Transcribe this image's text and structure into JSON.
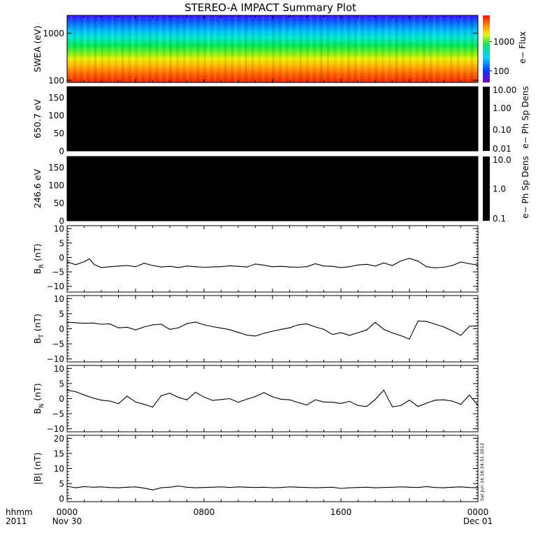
{
  "title": "STEREO-A IMPACT Summary Plot",
  "timestamp": "Sat Jun 16 16:24:51 2012",
  "footer": {
    "time_format_label": "hhmm",
    "year_label": "2011",
    "ticks": [
      {
        "hour": 0,
        "label": "0000",
        "date": "Nov 30"
      },
      {
        "hour": 8,
        "label": "0800",
        "date": ""
      },
      {
        "hour": 16,
        "label": "1600",
        "date": ""
      },
      {
        "hour": 24,
        "label": "0000",
        "date": "Dec 01"
      }
    ]
  },
  "chart_data": [
    {
      "type": "heatmap",
      "panel": "swea",
      "ylabel": "SWEA (eV)",
      "y_scale": "log",
      "ylim": [
        90,
        2400
      ],
      "yticks": [
        {
          "value": 100,
          "label": "100"
        },
        {
          "value": 1000,
          "label": "1000"
        }
      ],
      "colorbar_label": "e− Flux",
      "colorbar_ticks": [
        {
          "value": 100,
          "label": "100"
        },
        {
          "value": 1000,
          "label": "1000"
        }
      ],
      "colorbar_range": [
        40,
        8000
      ]
    },
    {
      "type": "heatmap",
      "panel": "pad650",
      "ylabel": "650.7 eV",
      "ylim": [
        0,
        180
      ],
      "yticks": [
        {
          "value": 0,
          "label": "0"
        },
        {
          "value": 50,
          "label": "50"
        },
        {
          "value": 100,
          "label": "100"
        },
        {
          "value": 150,
          "label": "150"
        }
      ],
      "fill_color": "#000000",
      "colorbar_label": "e− Ph Sp Dens",
      "colorbar_scale": "log",
      "colorbar_range": [
        0.01,
        10
      ],
      "colorbar_ticks": [
        {
          "value": 10,
          "label": "10.00"
        },
        {
          "value": 1,
          "label": "1.00"
        },
        {
          "value": 0.1,
          "label": "0.10"
        },
        {
          "value": 0.01,
          "label": "0.01"
        }
      ]
    },
    {
      "type": "heatmap",
      "panel": "pad246",
      "ylabel": "246.6 eV",
      "ylim": [
        0,
        180
      ],
      "yticks": [
        {
          "value": 0,
          "label": "0"
        },
        {
          "value": 50,
          "label": "50"
        },
        {
          "value": 100,
          "label": "100"
        },
        {
          "value": 150,
          "label": "150"
        }
      ],
      "fill_color": "#000000",
      "colorbar_label": "e− Ph Sp Dens",
      "colorbar_scale": "log",
      "colorbar_range": [
        0.1,
        10
      ],
      "colorbar_ticks": [
        {
          "value": 10,
          "label": "10.0"
        },
        {
          "value": 1,
          "label": "1.0"
        },
        {
          "value": 0.1,
          "label": "0.1"
        }
      ]
    },
    {
      "type": "line",
      "panel": "br",
      "ylabel_main": "B",
      "ylabel_sub": "R",
      "ylabel_unit": "(nT)",
      "ylim": [
        -12,
        11
      ],
      "yticks": [
        {
          "value": -10,
          "label": "−10"
        },
        {
          "value": -5,
          "label": "−5"
        },
        {
          "value": 0,
          "label": "0"
        },
        {
          "value": 5,
          "label": "5"
        },
        {
          "value": 10,
          "label": "10"
        }
      ],
      "x": [
        0,
        0.5,
        1,
        1.3,
        1.6,
        2,
        2.5,
        3,
        3.5,
        4,
        4.5,
        5,
        5.5,
        6,
        6.5,
        7,
        7.5,
        8,
        8.5,
        9,
        9.5,
        10,
        10.5,
        11,
        11.5,
        12,
        12.5,
        13,
        13.5,
        14,
        14.5,
        15,
        15.5,
        16,
        16.5,
        17,
        17.5,
        18,
        18.5,
        19,
        19.5,
        20,
        20.5,
        21,
        21.5,
        22,
        22.5,
        23,
        23.5,
        24
      ],
      "y": [
        -1.5,
        -2.5,
        -1.5,
        -0.5,
        -2.5,
        -3.5,
        -3.2,
        -3,
        -2.8,
        -3.2,
        -2,
        -2.8,
        -3.3,
        -3.1,
        -3.5,
        -3,
        -3.2,
        -3.4,
        -3.3,
        -3.2,
        -2.9,
        -3.1,
        -3.3,
        -2.3,
        -2.7,
        -3.2,
        -3.1,
        -3.3,
        -3.4,
        -3.2,
        -2.2,
        -3,
        -3.1,
        -3.5,
        -3.2,
        -2.6,
        -2.4,
        -3,
        -1.9,
        -2.8,
        -1.2,
        -0.3,
        -1.3,
        -3.2,
        -3.6,
        -3.4,
        -2.8,
        -1.6,
        -2.2,
        -2.6
      ]
    },
    {
      "type": "line",
      "panel": "bt",
      "ylabel_main": "B",
      "ylabel_sub": "T",
      "ylabel_unit": "(nT)",
      "ylim": [
        -11,
        11
      ],
      "yticks": [
        {
          "value": -10,
          "label": "−10"
        },
        {
          "value": -5,
          "label": "−5"
        },
        {
          "value": 0,
          "label": "0"
        },
        {
          "value": 5,
          "label": "5"
        },
        {
          "value": 10,
          "label": "10"
        }
      ],
      "x": [
        0,
        0.5,
        1,
        1.5,
        2,
        2.5,
        3,
        3.5,
        4,
        4.5,
        5,
        5.5,
        6,
        6.5,
        7,
        7.5,
        8,
        8.5,
        9,
        9.5,
        10,
        10.5,
        11,
        11.5,
        12,
        12.5,
        13,
        13.5,
        14,
        14.5,
        15,
        15.5,
        16,
        16.5,
        17,
        17.5,
        18,
        18.5,
        19,
        19.5,
        20,
        20.5,
        21,
        21.5,
        22,
        22.5,
        23,
        23.5,
        24
      ],
      "y": [
        2.2,
        2,
        1.8,
        1.9,
        1.5,
        1.6,
        0.3,
        0.5,
        -0.4,
        0.6,
        1.3,
        1.5,
        -0.2,
        0.3,
        1.7,
        2.2,
        1.3,
        0.7,
        0.2,
        -0.3,
        -1.2,
        -2.1,
        -2.4,
        -1.5,
        -0.8,
        -0.2,
        0.3,
        1.3,
        1.6,
        0.6,
        -0.2,
        -1.9,
        -1.3,
        -2.2,
        -1.3,
        -0.4,
        2.1,
        -0.2,
        -1.4,
        -2.3,
        -3.4,
        2.6,
        2.4,
        1.5,
        0.6,
        -0.7,
        -2.2,
        0.8,
        1
      ]
    },
    {
      "type": "line",
      "panel": "bn",
      "ylabel_main": "B",
      "ylabel_sub": "N",
      "ylabel_unit": "(nT)",
      "ylim": [
        -11,
        11
      ],
      "yticks": [
        {
          "value": -10,
          "label": "−10"
        },
        {
          "value": -5,
          "label": "−5"
        },
        {
          "value": 0,
          "label": "0"
        },
        {
          "value": 5,
          "label": "5"
        },
        {
          "value": 10,
          "label": "10"
        }
      ],
      "x": [
        0,
        0.5,
        1,
        1.5,
        2,
        2.5,
        3,
        3.5,
        4,
        4.5,
        5,
        5.5,
        6,
        6.5,
        7,
        7.5,
        8,
        8.5,
        9,
        9.5,
        10,
        10.5,
        11,
        11.5,
        12,
        12.5,
        13,
        13.5,
        14,
        14.5,
        15,
        15.5,
        16,
        16.5,
        17,
        17.5,
        18,
        18.5,
        19,
        19.5,
        20,
        20.5,
        21,
        21.5,
        22,
        22.5,
        23,
        23.5,
        24
      ],
      "y": [
        2.8,
        2.3,
        1.2,
        0.2,
        -0.5,
        -0.8,
        -1.7,
        0.8,
        -1.1,
        -1.9,
        -2.8,
        1,
        1.8,
        0.4,
        -0.4,
        2.1,
        0.5,
        -0.6,
        -0.3,
        0,
        -1.2,
        -0.2,
        0.7,
        2,
        0.6,
        -0.2,
        -0.4,
        -1.3,
        -2.1,
        -0.4,
        -1.1,
        -1.2,
        -1.6,
        -0.9,
        -2.3,
        -2.6,
        -0.3,
        2.8,
        -2.7,
        -2.3,
        -0.5,
        -2.6,
        -1.5,
        -0.5,
        -0.4,
        -0.8,
        -1.9,
        1.2,
        -2.3
      ]
    },
    {
      "type": "line",
      "panel": "bmag",
      "ylabel": "|B| (nT)",
      "ylim": [
        -1,
        21
      ],
      "yticks": [
        {
          "value": 0,
          "label": "0"
        },
        {
          "value": 5,
          "label": "5"
        },
        {
          "value": 10,
          "label": "10"
        },
        {
          "value": 15,
          "label": "15"
        },
        {
          "value": 20,
          "label": "20"
        }
      ],
      "x": [
        0,
        0.5,
        1,
        1.5,
        2,
        2.5,
        3,
        3.5,
        4,
        4.5,
        5,
        5.5,
        6,
        6.5,
        7,
        7.5,
        8,
        8.5,
        9,
        9.5,
        10,
        10.5,
        11,
        11.5,
        12,
        12.5,
        13,
        13.5,
        14,
        14.5,
        15,
        15.5,
        16,
        16.5,
        17,
        17.5,
        18,
        18.5,
        19,
        19.5,
        20,
        20.5,
        21,
        21.5,
        22,
        22.5,
        23,
        23.5,
        24
      ],
      "y": [
        4.1,
        3.6,
        4,
        3.8,
        3.9,
        3.7,
        3.6,
        3.8,
        3.9,
        3.5,
        2.9,
        3.6,
        3.8,
        4.2,
        3.8,
        3.6,
        3.7,
        3.8,
        3.9,
        3.7,
        3.9,
        3.8,
        3.7,
        3.8,
        3.6,
        3.7,
        3.9,
        3.8,
        3.7,
        3.6,
        3.7,
        3.8,
        3.4,
        3.6,
        3.7,
        3.8,
        3.6,
        3.7,
        3.8,
        3.9,
        3.8,
        3.7,
        4,
        3.7,
        3.6,
        3.8,
        3.9,
        3.7,
        3.6
      ]
    }
  ]
}
